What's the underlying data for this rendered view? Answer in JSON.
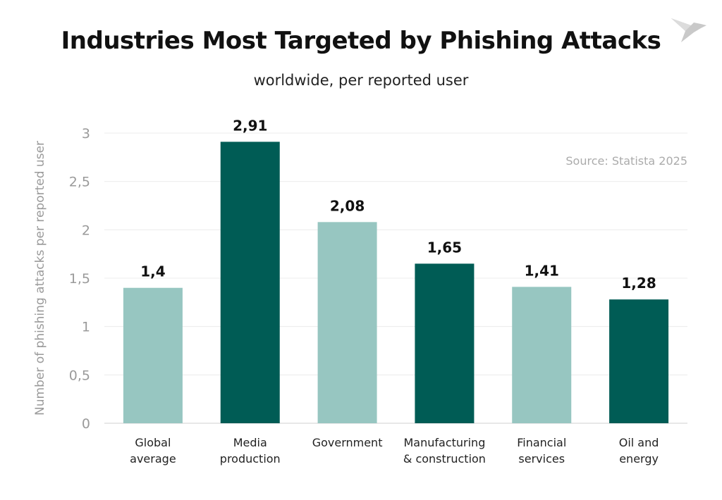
{
  "chart_data": {
    "type": "bar",
    "title": "Industries Most Targeted by Phishing Attacks",
    "subtitle": "worldwide, per reported user",
    "ylabel": "Number of phishing attacks per reported user",
    "xlabel": "",
    "ylim": [
      0,
      3
    ],
    "yticks": [
      "0",
      "0,5",
      "1",
      "1,5",
      "2",
      "2,5",
      "3"
    ],
    "ytick_values": [
      0,
      0.5,
      1,
      1.5,
      2,
      2.5,
      3
    ],
    "grid": true,
    "categories": [
      [
        "Global",
        "average"
      ],
      [
        "Media",
        "production"
      ],
      [
        "Government"
      ],
      [
        "Manufacturing",
        "& construction"
      ],
      [
        "Financial",
        "services"
      ],
      [
        "Oil and",
        "energy"
      ]
    ],
    "values": [
      1.4,
      2.91,
      2.08,
      1.65,
      1.41,
      1.28
    ],
    "data_labels": [
      "1,4",
      "2,91",
      "2,08",
      "1,65",
      "1,41",
      "1,28"
    ],
    "bar_colors": [
      "#97c6c1",
      "#005c55",
      "#97c6c1",
      "#005c55",
      "#97c6c1",
      "#005c55"
    ],
    "source": "Source: Statista 2025"
  },
  "logo": {
    "icon": "origami-bird-logo"
  }
}
